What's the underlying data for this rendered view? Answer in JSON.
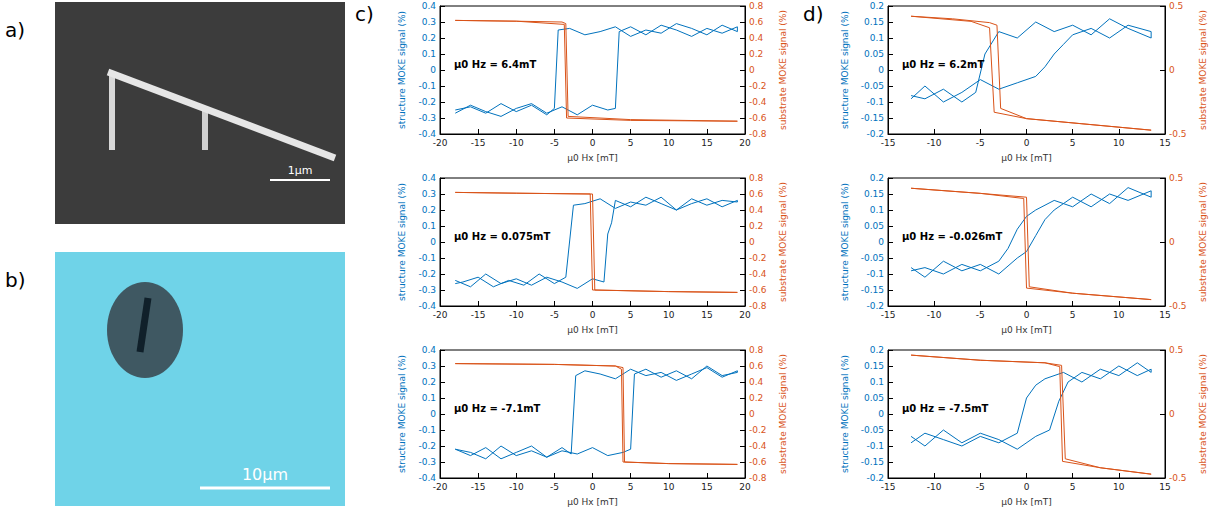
{
  "panels": [
    {
      "label": "a)",
      "scale_bar": "1µm"
    },
    {
      "label": "b)",
      "scale_bar": "10µm"
    },
    {
      "label": "c)"
    },
    {
      "label": "d)"
    }
  ],
  "chart_data": [
    {
      "type": "line",
      "panel": "c)",
      "annotation": "μ0 Hz = 6.4mT",
      "xlabel": "μ0 Hx [mT]",
      "ylabel": "structure MOKE signal (%)",
      "y2label": "substrate MOKE signal (%)",
      "xlim": [
        -20,
        20
      ],
      "xticks": [
        -20,
        -15,
        -10,
        -5,
        0,
        5,
        10,
        15,
        20
      ],
      "ylim": [
        -0.4,
        0.4
      ],
      "yticks": [
        -0.4,
        -0.3,
        -0.2,
        -0.1,
        0,
        0.1,
        0.2,
        0.3,
        0.4
      ],
      "y2lim": [
        -0.8,
        0.8
      ],
      "y2ticks": [
        -0.8,
        -0.6,
        -0.4,
        -0.2,
        0,
        0.2,
        0.4,
        0.6,
        0.8
      ],
      "series": [
        {
          "color": "#0072BD",
          "x": [
            -18,
            -16,
            -14,
            -12,
            -10,
            -8,
            -6,
            -4,
            -2,
            0,
            2,
            3,
            3.5,
            5,
            7,
            9,
            11,
            13,
            15,
            17,
            19,
            19,
            17,
            15,
            13,
            11,
            9,
            7,
            5,
            3,
            1,
            -1,
            -3,
            -4.5,
            -5,
            -6,
            -8,
            -10,
            -12,
            -14,
            -16,
            -18
          ],
          "values": [
            -0.27,
            -0.22,
            -0.26,
            -0.29,
            -0.24,
            -0.21,
            -0.27,
            -0.23,
            -0.28,
            -0.22,
            -0.25,
            -0.24,
            0.24,
            0.27,
            0.22,
            0.28,
            0.25,
            0.21,
            0.26,
            0.23,
            0.27,
            0.24,
            0.28,
            0.22,
            0.26,
            0.29,
            0.23,
            0.25,
            0.21,
            0.27,
            0.24,
            0.22,
            0.26,
            0.25,
            -0.24,
            -0.28,
            -0.22,
            -0.26,
            -0.21,
            -0.27,
            -0.23,
            -0.25
          ]
        },
        {
          "color": "#D95319",
          "axis": "y2",
          "x": [
            -18,
            -10,
            -4,
            -3.5,
            -3.2,
            5,
            19,
            19,
            5,
            -3.4,
            -3.7,
            -10,
            -18
          ],
          "values": [
            0.62,
            0.61,
            0.6,
            0.58,
            -0.58,
            -0.62,
            -0.64,
            -0.64,
            -0.63,
            -0.6,
            0.57,
            0.61,
            0.62
          ]
        }
      ]
    },
    {
      "type": "line",
      "panel": "c)",
      "annotation": "μ0 Hz = 0.075mT",
      "xlabel": "μ0 Hx [mT]",
      "ylabel": "structure MOKE signal (%)",
      "y2label": "substrate MOKE signal (%)",
      "xlim": [
        -20,
        20
      ],
      "xticks": [
        -20,
        -15,
        -10,
        -5,
        0,
        5,
        10,
        15,
        20
      ],
      "ylim": [
        -0.4,
        0.4
      ],
      "yticks": [
        -0.4,
        -0.3,
        -0.2,
        -0.1,
        0,
        0.1,
        0.2,
        0.3,
        0.4
      ],
      "y2lim": [
        -0.8,
        0.8
      ],
      "y2ticks": [
        -0.8,
        -0.6,
        -0.4,
        -0.2,
        0,
        0.2,
        0.4,
        0.6,
        0.8
      ],
      "series": [
        {
          "color": "#0072BD",
          "x": [
            -18,
            -16,
            -14,
            -12,
            -10,
            -8,
            -6,
            -4,
            -2,
            0,
            1.5,
            2,
            2.5,
            3,
            5,
            7,
            9,
            11,
            13,
            15,
            17,
            19,
            19,
            17,
            15,
            13,
            11,
            9,
            7,
            5,
            3,
            1,
            -1,
            -2.5,
            -3.5,
            -5,
            -7,
            -9,
            -11,
            -13,
            -15,
            -17,
            -18
          ],
          "values": [
            -0.24,
            -0.28,
            -0.2,
            -0.26,
            -0.23,
            -0.27,
            -0.22,
            -0.25,
            -0.29,
            -0.23,
            -0.25,
            0.05,
            0.12,
            0.26,
            0.22,
            0.28,
            0.24,
            0.2,
            0.27,
            0.23,
            0.26,
            0.25,
            0.26,
            0.22,
            0.27,
            0.24,
            0.2,
            0.28,
            0.23,
            0.25,
            0.21,
            0.27,
            0.24,
            0.23,
            -0.22,
            -0.26,
            -0.2,
            -0.27,
            -0.24,
            -0.28,
            -0.22,
            -0.25,
            -0.26
          ]
        },
        {
          "color": "#D95319",
          "axis": "y2",
          "x": [
            -18,
            -10,
            0,
            0.3,
            10,
            19,
            19,
            10,
            0,
            -0.3,
            -10,
            -18
          ],
          "values": [
            0.62,
            0.61,
            0.6,
            -0.6,
            -0.62,
            -0.63,
            -0.63,
            -0.62,
            -0.6,
            0.6,
            0.61,
            0.62
          ]
        }
      ]
    },
    {
      "type": "line",
      "panel": "c)",
      "annotation": "μ0 Hz = -7.1mT",
      "xlabel": "μ0 Hx [mT]",
      "ylabel": "structure MOKE signal (%)",
      "y2label": "substrate MOKE signal (%)",
      "xlim": [
        -20,
        20
      ],
      "xticks": [
        -20,
        -15,
        -10,
        -5,
        0,
        5,
        10,
        15,
        20
      ],
      "ylim": [
        -0.4,
        0.4
      ],
      "yticks": [
        -0.4,
        -0.3,
        -0.2,
        -0.1,
        0,
        0.1,
        0.2,
        0.3,
        0.4
      ],
      "y2lim": [
        -0.8,
        0.8
      ],
      "y2ticks": [
        -0.8,
        -0.6,
        -0.4,
        -0.2,
        0,
        0.2,
        0.4,
        0.6,
        0.8
      ],
      "series": [
        {
          "color": "#0072BD",
          "x": [
            -18,
            -16,
            -14,
            -12,
            -10,
            -8,
            -6,
            -4,
            -2,
            0,
            2,
            4,
            5,
            5.5,
            7,
            9,
            11,
            13,
            15,
            17,
            19,
            19,
            17,
            15,
            13,
            11,
            9,
            7,
            5,
            3,
            1,
            -1,
            -2.2,
            -2.8,
            -4,
            -6,
            -8,
            -10,
            -12,
            -14,
            -16,
            -18
          ],
          "values": [
            -0.22,
            -0.26,
            -0.21,
            -0.28,
            -0.24,
            -0.2,
            -0.27,
            -0.23,
            -0.25,
            -0.21,
            -0.26,
            -0.24,
            -0.22,
            0.25,
            0.28,
            0.23,
            0.27,
            0.22,
            0.3,
            0.24,
            0.26,
            0.27,
            0.23,
            0.29,
            0.25,
            0.21,
            0.26,
            0.24,
            0.28,
            0.22,
            0.25,
            0.27,
            0.24,
            -0.25,
            -0.21,
            -0.27,
            -0.23,
            -0.26,
            -0.2,
            -0.28,
            -0.24,
            -0.22
          ]
        },
        {
          "color": "#D95319",
          "axis": "y2",
          "x": [
            -18,
            -5,
            3,
            4,
            4.2,
            10,
            19,
            19,
            10,
            4,
            3.8,
            3,
            -5,
            -18
          ],
          "values": [
            0.63,
            0.62,
            0.6,
            0.58,
            -0.6,
            -0.62,
            -0.63,
            -0.63,
            -0.62,
            -0.6,
            0.56,
            0.6,
            0.62,
            0.63
          ]
        }
      ]
    },
    {
      "type": "line",
      "panel": "d)",
      "annotation": "μ0 Hz = 6.2mT",
      "xlabel": "μ0 Hx [mT]",
      "ylabel": "structure MOKE signal (%)",
      "y2label": "substrate MOKE signal (%)",
      "xlim": [
        -15,
        15
      ],
      "xticks": [
        -15,
        -10,
        -5,
        0,
        5,
        10,
        15
      ],
      "ylim": [
        -0.2,
        0.2
      ],
      "yticks": [
        -0.2,
        -0.15,
        -0.1,
        -0.05,
        0,
        0.05,
        0.1,
        0.15,
        0.2
      ],
      "y2lim": [
        -0.5,
        0.5
      ],
      "y2ticks": [
        -0.5,
        0,
        0.5
      ],
      "series": [
        {
          "color": "#0072BD",
          "x": [
            -12.5,
            -11,
            -9,
            -7,
            -5,
            -3,
            -1,
            1,
            2,
            3,
            4,
            5,
            7,
            9,
            11,
            13.5,
            13.5,
            11,
            9,
            7,
            5,
            3,
            1,
            -1,
            -3,
            -4.5,
            -5.5,
            -7,
            -9,
            -11,
            -12.5
          ],
          "values": [
            -0.09,
            -0.05,
            -0.1,
            -0.07,
            -0.03,
            -0.06,
            -0.04,
            -0.02,
            0.01,
            0.05,
            0.08,
            0.11,
            0.13,
            0.1,
            0.14,
            0.12,
            0.1,
            0.13,
            0.16,
            0.11,
            0.14,
            0.12,
            0.15,
            0.1,
            0.12,
            0.05,
            -0.07,
            -0.1,
            -0.06,
            -0.09,
            -0.08
          ]
        },
        {
          "color": "#D95319",
          "axis": "y2",
          "x": [
            -12.5,
            -8,
            -4,
            -3.2,
            -2.8,
            0,
            6,
            13.5,
            13.5,
            6,
            0,
            -3.5,
            -4,
            -6,
            -12.5
          ],
          "values": [
            0.42,
            0.4,
            0.37,
            0.35,
            -0.3,
            -0.38,
            -0.42,
            -0.47,
            -0.47,
            -0.42,
            -0.38,
            -0.33,
            0.33,
            0.38,
            0.42
          ]
        }
      ]
    },
    {
      "type": "line",
      "panel": "d)",
      "annotation": "μ0 Hz = -0.026mT",
      "xlabel": "μ0 Hx [mT]",
      "ylabel": "structure MOKE signal (%)",
      "y2label": "substrate MOKE signal (%)",
      "xlim": [
        -15,
        15
      ],
      "xticks": [
        -15,
        -10,
        -5,
        0,
        5,
        10,
        15
      ],
      "ylim": [
        -0.2,
        0.2
      ],
      "yticks": [
        -0.2,
        -0.15,
        -0.1,
        -0.05,
        0,
        0.05,
        0.1,
        0.15,
        0.2
      ],
      "y2lim": [
        -0.5,
        0.5
      ],
      "y2ticks": [
        -0.5,
        0,
        0.5
      ],
      "series": [
        {
          "color": "#0072BD",
          "x": [
            -12.5,
            -11,
            -9,
            -7,
            -5,
            -3,
            -1,
            0,
            1,
            2,
            3,
            4,
            5,
            7,
            9,
            11,
            13.5,
            13.5,
            11,
            9,
            7,
            5,
            3,
            1,
            0,
            -1,
            -2,
            -3,
            -5,
            -7,
            -9,
            -11,
            -12.5
          ],
          "values": [
            -0.08,
            -0.11,
            -0.06,
            -0.09,
            -0.07,
            -0.1,
            -0.05,
            -0.03,
            0.02,
            0.07,
            0.1,
            0.12,
            0.14,
            0.11,
            0.15,
            0.13,
            0.16,
            0.14,
            0.17,
            0.12,
            0.15,
            0.11,
            0.13,
            0.1,
            0.08,
            0.04,
            -0.02,
            -0.06,
            -0.09,
            -0.07,
            -0.1,
            -0.08,
            -0.09
          ]
        },
        {
          "color": "#D95319",
          "axis": "y2",
          "x": [
            -12.5,
            -5,
            0,
            0.3,
            5,
            13.5,
            13.5,
            5,
            0,
            -0.3,
            -5,
            -12.5
          ],
          "values": [
            0.42,
            0.38,
            0.35,
            -0.35,
            -0.4,
            -0.45,
            -0.45,
            -0.4,
            -0.36,
            0.34,
            0.38,
            0.42
          ]
        }
      ]
    },
    {
      "type": "line",
      "panel": "d)",
      "annotation": "μ0 Hz = -7.5mT",
      "xlabel": "μ0 Hx [mT]",
      "ylabel": "structure MOKE signal (%)",
      "y2label": "substrate MOKE signal (%)",
      "xlim": [
        -15,
        15
      ],
      "xticks": [
        -15,
        -10,
        -5,
        0,
        5,
        10,
        15
      ],
      "ylim": [
        -0.2,
        0.2
      ],
      "yticks": [
        -0.2,
        -0.15,
        -0.1,
        -0.05,
        0,
        0.05,
        0.1,
        0.15,
        0.2
      ],
      "y2lim": [
        -0.5,
        0.5
      ],
      "y2ticks": [
        -0.5,
        0,
        0.5
      ],
      "series": [
        {
          "color": "#0072BD",
          "x": [
            -12.5,
            -11,
            -9,
            -7,
            -5,
            -3,
            -1,
            1,
            2.5,
            3.5,
            4.5,
            6,
            8,
            10,
            12,
            13.5,
            13.5,
            12,
            10,
            8,
            6,
            4,
            2,
            1,
            0,
            -1,
            -3,
            -5,
            -7,
            -9,
            -11,
            -12.5
          ],
          "values": [
            -0.07,
            -0.1,
            -0.05,
            -0.09,
            -0.06,
            -0.08,
            -0.11,
            -0.07,
            -0.05,
            0.04,
            0.1,
            0.13,
            0.11,
            0.15,
            0.12,
            0.14,
            0.13,
            0.16,
            0.12,
            0.14,
            0.1,
            0.13,
            0.11,
            0.09,
            0.05,
            -0.06,
            -0.09,
            -0.07,
            -0.1,
            -0.08,
            -0.06,
            -0.09
          ]
        },
        {
          "color": "#D95319",
          "axis": "y2",
          "x": [
            -12.5,
            -5,
            2,
            3.8,
            4.2,
            8,
            13.5,
            13.5,
            8,
            3.9,
            3.6,
            2,
            -5,
            -12.5
          ],
          "values": [
            0.46,
            0.42,
            0.4,
            0.38,
            -0.35,
            -0.42,
            -0.47,
            -0.47,
            -0.42,
            -0.37,
            0.37,
            0.4,
            0.42,
            0.46
          ]
        }
      ]
    }
  ]
}
